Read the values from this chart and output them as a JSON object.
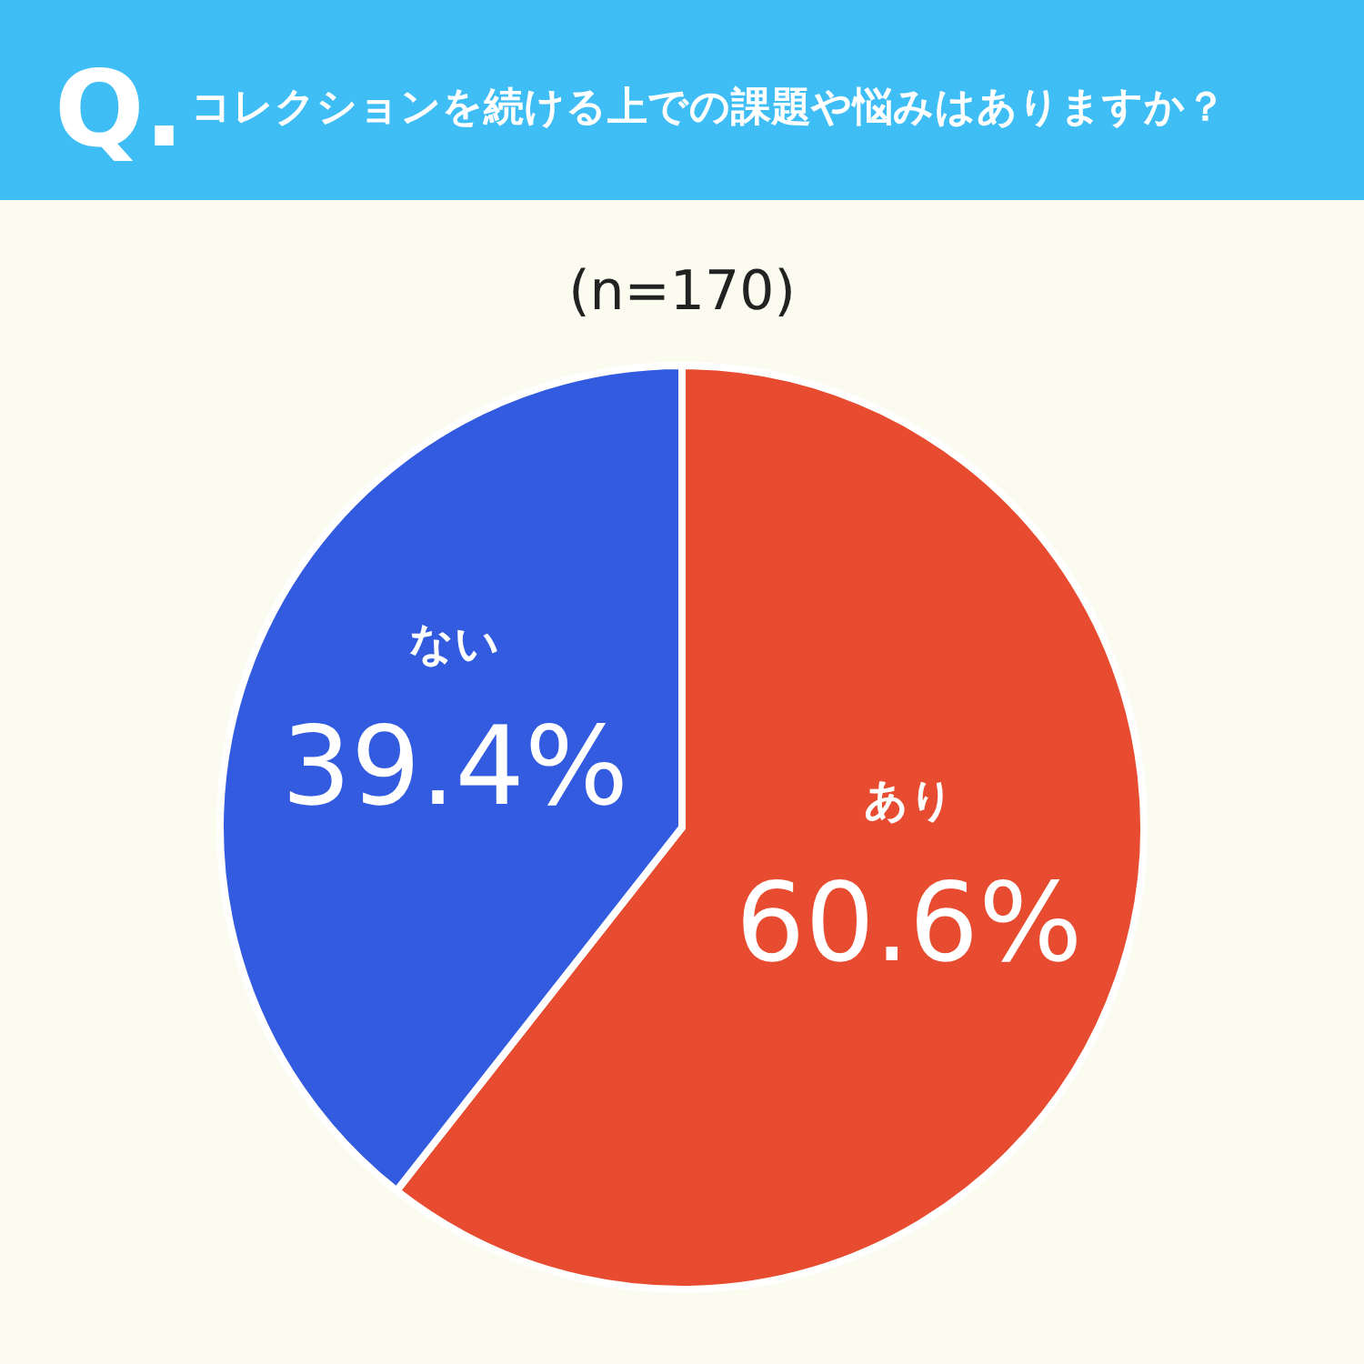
{
  "chart_data": {
    "type": "pie",
    "title": "コレクションを続ける上での課題や悩みはありますか？",
    "subtitle": "(n=170)",
    "annotations": [
      "Q."
    ],
    "categories": [
      "あり",
      "ない"
    ],
    "values": [
      60.6,
      39.4
    ],
    "colors": [
      "#e84c30",
      "#335bdf"
    ],
    "value_labels": [
      "60.6%",
      "39.4%"
    ]
  }
}
